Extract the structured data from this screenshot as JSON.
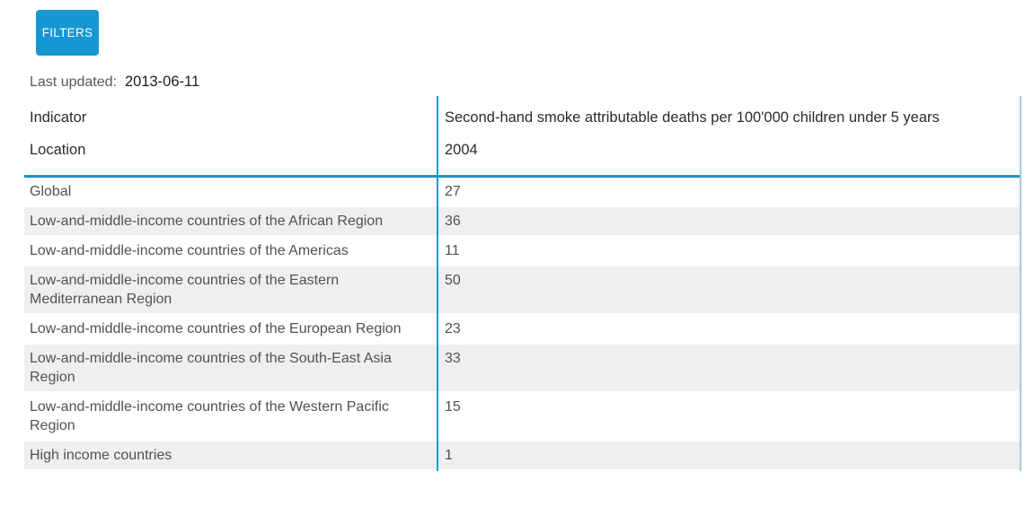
{
  "filters": {
    "label": "FILTERS"
  },
  "last_updated": {
    "label": "Last updated:",
    "value": "2013-06-11"
  },
  "table": {
    "header": {
      "indicator_label": "Indicator",
      "location_label": "Location",
      "indicator_name": "Second-hand smoke attributable deaths per 100'000 children under 5 years",
      "year": "2004"
    },
    "rows": [
      {
        "location": "Global",
        "value": "27"
      },
      {
        "location": "Low-and-middle-income countries of the African Region",
        "value": "36"
      },
      {
        "location": "Low-and-middle-income countries of the Americas",
        "value": "11"
      },
      {
        "location": "Low-and-middle-income countries of the Eastern Mediterranean Region",
        "value": "50"
      },
      {
        "location": "Low-and-middle-income countries of the European Region",
        "value": "23"
      },
      {
        "location": "Low-and-middle-income countries of the South-East Asia Region",
        "value": "33"
      },
      {
        "location": "Low-and-middle-income countries of the Western Pacific Region",
        "value": "15"
      },
      {
        "location": "High income countries",
        "value": "1"
      }
    ]
  },
  "colors": {
    "accent_blue": "#1597d3",
    "header_rule": "#2191c4",
    "column_line": "#1d9bd3",
    "right_edge_line": "#a6c8da",
    "row_stripe": "#eef0f0"
  }
}
